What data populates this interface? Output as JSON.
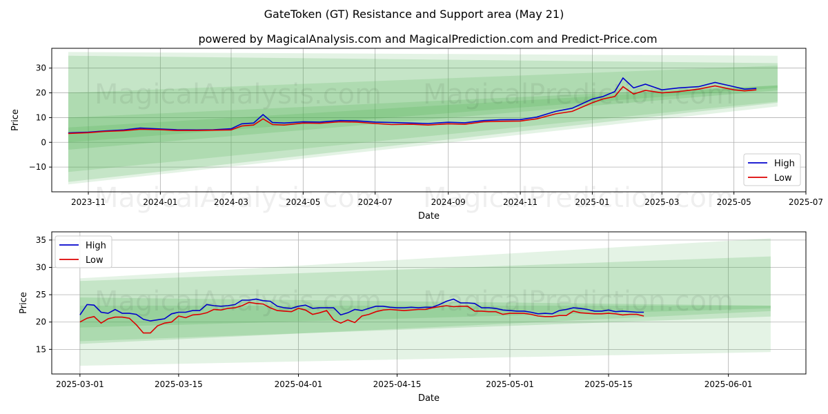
{
  "figure": {
    "title": "GateToken (GT) Resistance and Support area (May 21)",
    "subtitle": "powered by MagicalAnalysis.com and MagicalPrediction.com and Predict-Price.com",
    "watermarks": [
      "MagicalAnalysis.com",
      "MagicalPrediction.com"
    ]
  },
  "colors": {
    "high": "#0000cc",
    "low": "#dd0000",
    "band": "#4caf50",
    "grid": "#b0b0b0"
  },
  "chart_data": [
    {
      "type": "line",
      "xlabel": "Date",
      "ylabel": "Price",
      "xlim": [
        "2023-10-01",
        "2025-07-01"
      ],
      "ylim": [
        -20,
        38
      ],
      "grid": true,
      "legend": "bottom-right",
      "x_ticks": [
        "2023-11",
        "2024-01",
        "2024-03",
        "2024-05",
        "2024-07",
        "2024-09",
        "2024-11",
        "2025-01",
        "2025-03",
        "2025-05",
        "2025-07"
      ],
      "y_ticks": [
        -10,
        0,
        10,
        20,
        30
      ],
      "series": [
        {
          "name": "High",
          "x": [
            "2023-10-15",
            "2023-11-01",
            "2023-11-15",
            "2023-12-01",
            "2023-12-15",
            "2024-01-01",
            "2024-01-15",
            "2024-02-01",
            "2024-02-15",
            "2024-03-01",
            "2024-03-10",
            "2024-03-20",
            "2024-03-28",
            "2024-04-05",
            "2024-04-15",
            "2024-05-01",
            "2024-05-15",
            "2024-06-01",
            "2024-06-15",
            "2024-07-01",
            "2024-07-15",
            "2024-08-01",
            "2024-08-15",
            "2024-09-01",
            "2024-09-15",
            "2024-10-01",
            "2024-10-15",
            "2024-11-01",
            "2024-11-15",
            "2024-12-01",
            "2024-12-15",
            "2025-01-01",
            "2025-01-10",
            "2025-01-20",
            "2025-01-27",
            "2025-02-05",
            "2025-02-15",
            "2025-03-01",
            "2025-03-15",
            "2025-04-01",
            "2025-04-15",
            "2025-05-01",
            "2025-05-10",
            "2025-05-20"
          ],
          "values": [
            3.8,
            4.1,
            4.6,
            5.0,
            5.8,
            5.4,
            5.1,
            5.0,
            5.1,
            5.5,
            7.5,
            7.8,
            11.2,
            8.0,
            7.8,
            8.3,
            8.2,
            8.8,
            8.7,
            8.2,
            8.0,
            7.8,
            7.6,
            8.1,
            7.9,
            8.8,
            9.1,
            9.2,
            10.2,
            12.5,
            13.8,
            17.5,
            18.5,
            20.5,
            26.0,
            22.0,
            23.5,
            21.2,
            22.0,
            22.5,
            24.2,
            22.5,
            21.5,
            21.8
          ]
        },
        {
          "name": "Low",
          "x": [
            "2023-10-15",
            "2023-11-01",
            "2023-11-15",
            "2023-12-01",
            "2023-12-15",
            "2024-01-01",
            "2024-01-15",
            "2024-02-01",
            "2024-02-15",
            "2024-03-01",
            "2024-03-10",
            "2024-03-20",
            "2024-03-28",
            "2024-04-05",
            "2024-04-15",
            "2024-05-01",
            "2024-05-15",
            "2024-06-01",
            "2024-06-15",
            "2024-07-01",
            "2024-07-15",
            "2024-08-01",
            "2024-08-15",
            "2024-09-01",
            "2024-09-15",
            "2024-10-01",
            "2024-10-15",
            "2024-11-01",
            "2024-11-15",
            "2024-12-01",
            "2024-12-15",
            "2025-01-01",
            "2025-01-10",
            "2025-01-20",
            "2025-01-27",
            "2025-02-05",
            "2025-02-15",
            "2025-03-01",
            "2025-03-15",
            "2025-04-01",
            "2025-04-15",
            "2025-05-01",
            "2025-05-10",
            "2025-05-20"
          ],
          "values": [
            3.6,
            3.9,
            4.4,
            4.7,
            5.3,
            5.1,
            4.8,
            4.8,
            4.9,
            5.0,
            6.6,
            7.0,
            9.5,
            7.2,
            7.0,
            7.8,
            7.7,
            8.3,
            8.2,
            7.6,
            7.2,
            7.3,
            7.0,
            7.5,
            7.3,
            8.3,
            8.5,
            8.6,
            9.5,
            11.5,
            12.5,
            16.0,
            17.5,
            18.5,
            22.5,
            19.5,
            21.0,
            20.0,
            20.5,
            21.5,
            22.8,
            21.2,
            20.8,
            21.2
          ]
        }
      ],
      "bands": [
        {
          "opacity": 0.15,
          "start": {
            "x": "2023-10-15",
            "upper": 36.5,
            "lower": -17.0
          },
          "end": {
            "x": "2025-06-07",
            "upper": 35.0,
            "lower": 14.5
          }
        },
        {
          "opacity": 0.2,
          "start": {
            "x": "2023-10-15",
            "upper": 35.0,
            "lower": -16.0
          },
          "end": {
            "x": "2025-06-07",
            "upper": 32.0,
            "lower": 16.0
          }
        },
        {
          "opacity": 0.18,
          "start": {
            "x": "2023-10-15",
            "upper": 20.0,
            "lower": -12.0
          },
          "end": {
            "x": "2025-06-07",
            "upper": 31.0,
            "lower": 16.5
          }
        },
        {
          "opacity": 0.2,
          "start": {
            "x": "2023-10-15",
            "upper": 10.0,
            "lower": -3.0
          },
          "end": {
            "x": "2025-06-07",
            "upper": 23.0,
            "lower": 21.0
          }
        },
        {
          "opacity": 0.2,
          "start": {
            "x": "2023-10-15",
            "upper": 6.0,
            "lower": 0.0
          },
          "end": {
            "x": "2025-06-07",
            "upper": 23.0,
            "lower": 22.0
          }
        }
      ]
    },
    {
      "type": "line",
      "xlabel": "Date",
      "ylabel": "Price",
      "xlim": [
        "2025-02-25",
        "2025-06-12"
      ],
      "ylim": [
        10.5,
        36.5
      ],
      "grid": true,
      "legend": "top-left",
      "x_ticks": [
        "2025-03-01",
        "2025-03-15",
        "2025-04-01",
        "2025-04-15",
        "2025-05-01",
        "2025-05-15",
        "2025-06-01"
      ],
      "y_ticks": [
        15,
        20,
        25,
        30,
        35
      ],
      "series": [
        {
          "name": "High",
          "x": [
            "2025-03-01",
            "2025-03-02",
            "2025-03-03",
            "2025-03-04",
            "2025-03-05",
            "2025-03-06",
            "2025-03-07",
            "2025-03-08",
            "2025-03-09",
            "2025-03-10",
            "2025-03-11",
            "2025-03-12",
            "2025-03-13",
            "2025-03-14",
            "2025-03-15",
            "2025-03-16",
            "2025-03-17",
            "2025-03-18",
            "2025-03-19",
            "2025-03-20",
            "2025-03-21",
            "2025-03-22",
            "2025-03-23",
            "2025-03-24",
            "2025-03-25",
            "2025-03-26",
            "2025-03-27",
            "2025-03-28",
            "2025-03-29",
            "2025-03-30",
            "2025-03-31",
            "2025-04-01",
            "2025-04-02",
            "2025-04-03",
            "2025-04-04",
            "2025-04-05",
            "2025-04-06",
            "2025-04-07",
            "2025-04-08",
            "2025-04-09",
            "2025-04-10",
            "2025-04-11",
            "2025-04-12",
            "2025-04-13",
            "2025-04-14",
            "2025-04-15",
            "2025-04-16",
            "2025-04-17",
            "2025-04-18",
            "2025-04-19",
            "2025-04-20",
            "2025-04-21",
            "2025-04-22",
            "2025-04-23",
            "2025-04-24",
            "2025-04-25",
            "2025-04-26",
            "2025-04-27",
            "2025-04-28",
            "2025-04-29",
            "2025-04-30",
            "2025-05-01",
            "2025-05-02",
            "2025-05-03",
            "2025-05-04",
            "2025-05-05",
            "2025-05-06",
            "2025-05-07",
            "2025-05-08",
            "2025-05-09",
            "2025-05-10",
            "2025-05-11",
            "2025-05-12",
            "2025-05-13",
            "2025-05-14",
            "2025-05-15",
            "2025-05-16",
            "2025-05-17",
            "2025-05-18",
            "2025-05-19",
            "2025-05-20"
          ],
          "values": [
            21.3,
            23.2,
            23.1,
            21.8,
            21.6,
            22.3,
            21.6,
            21.6,
            21.4,
            20.5,
            20.2,
            20.4,
            20.6,
            21.5,
            21.8,
            21.8,
            22.1,
            22.1,
            23.2,
            23.0,
            22.9,
            23.0,
            23.2,
            24.0,
            24.0,
            24.2,
            23.9,
            23.8,
            22.9,
            22.6,
            22.5,
            22.9,
            23.1,
            22.5,
            22.6,
            22.6,
            22.6,
            21.3,
            21.7,
            22.3,
            22.1,
            22.5,
            22.9,
            22.9,
            22.7,
            22.6,
            22.6,
            22.7,
            22.6,
            22.7,
            22.7,
            23.2,
            23.8,
            24.2,
            23.5,
            23.5,
            23.4,
            22.6,
            22.6,
            22.5,
            22.2,
            22.1,
            22.0,
            22.0,
            21.8,
            21.5,
            21.6,
            21.5,
            22.1,
            22.3,
            22.6,
            22.5,
            22.3,
            22.0,
            22.0,
            22.2,
            21.9,
            22.0,
            21.9,
            21.8,
            21.8
          ]
        },
        {
          "name": "Low",
          "x": [
            "2025-03-01",
            "2025-03-02",
            "2025-03-03",
            "2025-03-04",
            "2025-03-05",
            "2025-03-06",
            "2025-03-07",
            "2025-03-08",
            "2025-03-09",
            "2025-03-10",
            "2025-03-11",
            "2025-03-12",
            "2025-03-13",
            "2025-03-14",
            "2025-03-15",
            "2025-03-16",
            "2025-03-17",
            "2025-03-18",
            "2025-03-19",
            "2025-03-20",
            "2025-03-21",
            "2025-03-22",
            "2025-03-23",
            "2025-03-24",
            "2025-03-25",
            "2025-03-26",
            "2025-03-27",
            "2025-03-28",
            "2025-03-29",
            "2025-03-30",
            "2025-03-31",
            "2025-04-01",
            "2025-04-02",
            "2025-04-03",
            "2025-04-04",
            "2025-04-05",
            "2025-04-06",
            "2025-04-07",
            "2025-04-08",
            "2025-04-09",
            "2025-04-10",
            "2025-04-11",
            "2025-04-12",
            "2025-04-13",
            "2025-04-14",
            "2025-04-15",
            "2025-04-16",
            "2025-04-17",
            "2025-04-18",
            "2025-04-19",
            "2025-04-20",
            "2025-04-21",
            "2025-04-22",
            "2025-04-23",
            "2025-04-24",
            "2025-04-25",
            "2025-04-26",
            "2025-04-27",
            "2025-04-28",
            "2025-04-29",
            "2025-04-30",
            "2025-05-01",
            "2025-05-02",
            "2025-05-03",
            "2025-05-04",
            "2025-05-05",
            "2025-05-06",
            "2025-05-07",
            "2025-05-08",
            "2025-05-09",
            "2025-05-10",
            "2025-05-11",
            "2025-05-12",
            "2025-05-13",
            "2025-05-14",
            "2025-05-15",
            "2025-05-16",
            "2025-05-17",
            "2025-05-18",
            "2025-05-19",
            "2025-05-20"
          ],
          "values": [
            20.0,
            20.7,
            21.0,
            19.8,
            20.6,
            20.9,
            20.9,
            20.7,
            19.5,
            18.0,
            18.0,
            19.3,
            19.8,
            20.0,
            21.1,
            20.8,
            21.3,
            21.4,
            21.7,
            22.3,
            22.2,
            22.5,
            22.6,
            23.0,
            23.6,
            23.4,
            23.3,
            22.6,
            22.1,
            22.0,
            21.9,
            22.5,
            22.2,
            21.4,
            21.7,
            22.1,
            20.4,
            19.8,
            20.4,
            19.9,
            21.1,
            21.4,
            21.9,
            22.2,
            22.3,
            22.2,
            22.1,
            22.2,
            22.3,
            22.3,
            22.6,
            22.8,
            23.0,
            22.8,
            22.9,
            22.9,
            22.0,
            22.0,
            21.9,
            21.9,
            21.4,
            21.6,
            21.6,
            21.6,
            21.4,
            21.1,
            21.0,
            21.0,
            21.2,
            21.2,
            22.0,
            21.7,
            21.6,
            21.5,
            21.5,
            21.6,
            21.5,
            21.3,
            21.4,
            21.4,
            21.1
          ]
        }
      ],
      "bands": [
        {
          "opacity": 0.15,
          "start": {
            "x": "2025-03-01",
            "upper": 28.0,
            "lower": 12.0
          },
          "end": {
            "x": "2025-06-07",
            "upper": 35.3,
            "lower": 14.5
          }
        },
        {
          "opacity": 0.2,
          "start": {
            "x": "2025-03-01",
            "upper": 27.5,
            "lower": 16.0
          },
          "end": {
            "x": "2025-06-07",
            "upper": 32.0,
            "lower": 22.0
          }
        },
        {
          "opacity": 0.2,
          "start": {
            "x": "2025-03-01",
            "upper": 24.5,
            "lower": 16.5
          },
          "end": {
            "x": "2025-06-07",
            "upper": 23.0,
            "lower": 21.0
          }
        },
        {
          "opacity": 0.2,
          "start": {
            "x": "2025-03-01",
            "upper": 23.0,
            "lower": 19.0
          },
          "end": {
            "x": "2025-06-07",
            "upper": 23.0,
            "lower": 22.5
          }
        }
      ]
    }
  ]
}
